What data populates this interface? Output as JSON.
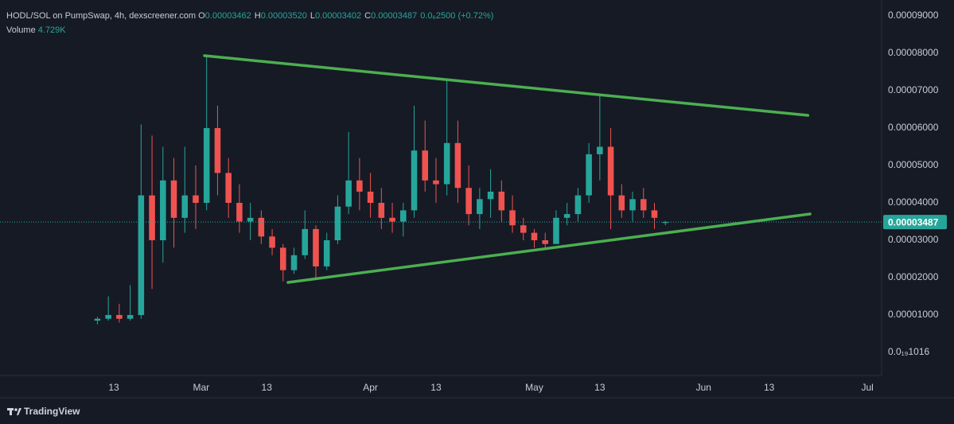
{
  "chart_data": {
    "type": "candlestick",
    "title": "HODL/SOL on PumpSwap, 4h, dexscreener.com",
    "header": [
      {
        "label": "O",
        "value": "0.00003462"
      },
      {
        "label": "H",
        "value": "0.00003520"
      },
      {
        "label": "L",
        "value": "0.00003402"
      },
      {
        "label": "C",
        "value": "0.00003487"
      }
    ],
    "change": "0.0₆2500 (+0.72%)",
    "volume_label": "Volume",
    "volume": "4.729K",
    "watermark": "TradingView",
    "up_color": "#26a69a",
    "down_color": "#ef5350",
    "grid": false,
    "x": [
      9,
      11,
      13,
      15,
      17,
      19,
      21,
      23,
      25,
      27,
      29,
      31,
      33,
      35,
      37,
      39,
      41,
      43,
      45,
      47,
      49,
      51,
      53,
      55,
      57,
      59,
      61,
      63,
      65,
      67,
      69,
      71,
      73,
      75,
      77,
      79,
      81,
      83,
      85,
      87,
      89,
      91,
      93,
      95,
      97,
      99,
      101,
      103,
      105,
      107,
      109,
      111,
      113
    ],
    "open": [
      8.5e-06,
      9e-06,
      1e-05,
      9e-06,
      1e-05,
      4.2e-05,
      3e-05,
      4.6e-05,
      3.6e-05,
      4.2e-05,
      4e-05,
      6e-05,
      4.8e-05,
      4e-05,
      3.5e-05,
      3.6e-05,
      3.1e-05,
      2.8e-05,
      2.2e-05,
      2.6e-05,
      3.3e-05,
      2.3e-05,
      3e-05,
      3.9e-05,
      4.6e-05,
      4.3e-05,
      4e-05,
      3.6e-05,
      3.5e-05,
      3.8e-05,
      5.4e-05,
      4.6e-05,
      4.5e-05,
      5.6e-05,
      4.4e-05,
      3.7e-05,
      4.1e-05,
      4.3e-05,
      3.8e-05,
      3.4e-05,
      3.2e-05,
      3e-05,
      2.9e-05,
      3.6e-05,
      3.7e-05,
      4.2e-05,
      5.3e-05,
      5.5e-05,
      4.2e-05,
      3.8e-05,
      4.1e-05,
      3.8e-05,
      3.462e-05
    ],
    "high": [
      9.5e-06,
      1.5e-05,
      1.3e-05,
      1.8e-05,
      6.1e-05,
      5.8e-05,
      5.5e-05,
      5.2e-05,
      5.5e-05,
      5e-05,
      7.9e-05,
      6.6e-05,
      5.2e-05,
      4.5e-05,
      4e-05,
      3.8e-05,
      3.3e-05,
      2.9e-05,
      2.8e-05,
      3.8e-05,
      3.4e-05,
      3.2e-05,
      4.2e-05,
      5.9e-05,
      5.2e-05,
      4.8e-05,
      4.4e-05,
      4e-05,
      4e-05,
      6.6e-05,
      6.2e-05,
      5.2e-05,
      7.3e-05,
      6.2e-05,
      5e-05,
      4.4e-05,
      4.9e-05,
      4.6e-05,
      4.2e-05,
      3.6e-05,
      3.3e-05,
      3.2e-05,
      3.8e-05,
      4e-05,
      4.4e-05,
      5.6e-05,
      6.9e-05,
      6e-05,
      4.5e-05,
      4.3e-05,
      4.4e-05,
      4e-05,
      3.52e-05
    ],
    "low": [
      7.5e-06,
      8.5e-06,
      8e-06,
      8.5e-06,
      9e-06,
      1.7e-05,
      2.4e-05,
      2.8e-05,
      3.2e-05,
      3.3e-05,
      3.8e-05,
      4.2e-05,
      3.6e-05,
      3.2e-05,
      3e-05,
      2.9e-05,
      2.6e-05,
      1.9e-05,
      2.1e-05,
      2.5e-05,
      2e-05,
      2.2e-05,
      2.9e-05,
      3.7e-05,
      3.8e-05,
      3.6e-05,
      3.3e-05,
      3.2e-05,
      3.1e-05,
      3.6e-05,
      4.3e-05,
      4e-05,
      4.2e-05,
      4e-05,
      3.4e-05,
      3.3e-05,
      3.6e-05,
      3.5e-05,
      3.2e-05,
      3e-05,
      2.8e-05,
      2.8e-05,
      2.9e-05,
      3.4e-05,
      3.5e-05,
      4e-05,
      4.6e-05,
      3.3e-05,
      3.6e-05,
      3.5e-05,
      3.6e-05,
      3.3e-05,
      3.402e-05
    ],
    "close": [
      9e-06,
      1e-05,
      9e-06,
      1e-05,
      4.2e-05,
      3e-05,
      4.6e-05,
      3.6e-05,
      4.2e-05,
      4e-05,
      6e-05,
      4.8e-05,
      4e-05,
      3.5e-05,
      3.6e-05,
      3.1e-05,
      2.8e-05,
      2.2e-05,
      2.6e-05,
      3.3e-05,
      2.3e-05,
      3e-05,
      3.9e-05,
      4.6e-05,
      4.3e-05,
      4e-05,
      3.6e-05,
      3.5e-05,
      3.8e-05,
      5.4e-05,
      4.6e-05,
      4.5e-05,
      5.6e-05,
      4.4e-05,
      3.7e-05,
      4.1e-05,
      4.3e-05,
      3.8e-05,
      3.4e-05,
      3.2e-05,
      3e-05,
      2.9e-05,
      3.6e-05,
      3.7e-05,
      4.2e-05,
      5.3e-05,
      5.5e-05,
      4.2e-05,
      3.8e-05,
      4.1e-05,
      3.8e-05,
      3.6e-05,
      3.487e-05
    ],
    "current_price": 3.487e-05,
    "current_price_color": "#26a69a",
    "trendlines": [
      {
        "color": "#4caf50",
        "x": [
          28.6,
          139.1
        ],
        "y": [
          7.936e-05,
          6.34e-05
        ]
      },
      {
        "color": "#4caf50",
        "x": [
          43.9,
          139.5
        ],
        "y": [
          1.872e-05,
          3.702e-05
        ]
      }
    ],
    "xlim": [
      -8.84,
      152.6
    ],
    "xticks": [
      {
        "value": 12,
        "label": "13"
      },
      {
        "value": 28,
        "label": "Mar"
      },
      {
        "value": 40,
        "label": "13"
      },
      {
        "value": 59,
        "label": "Apr"
      },
      {
        "value": 71,
        "label": "13"
      },
      {
        "value": 89,
        "label": "May"
      },
      {
        "value": 101,
        "label": "13"
      },
      {
        "value": 120,
        "label": "Jun"
      },
      {
        "value": 132,
        "label": "13"
      },
      {
        "value": 150,
        "label": "Jul"
      }
    ],
    "ylim": [
      -6.17e-06,
      9.426e-05
    ],
    "yticks": [
      {
        "value": 9e-05,
        "label": "0.00009000"
      },
      {
        "value": 8e-05,
        "label": "0.00008000"
      },
      {
        "value": 7e-05,
        "label": "0.00007000"
      },
      {
        "value": 6e-05,
        "label": "0.00006000"
      },
      {
        "value": 5e-05,
        "label": "0.00005000"
      },
      {
        "value": 4e-05,
        "label": "0.00004000"
      },
      {
        "value": 3e-05,
        "label": "0.00003000"
      },
      {
        "value": 2e-05,
        "label": "0.00002000"
      },
      {
        "value": 1e-05,
        "label": "0.00001000"
      },
      {
        "value": 0,
        "label": "0.0₁₉1016"
      }
    ]
  }
}
